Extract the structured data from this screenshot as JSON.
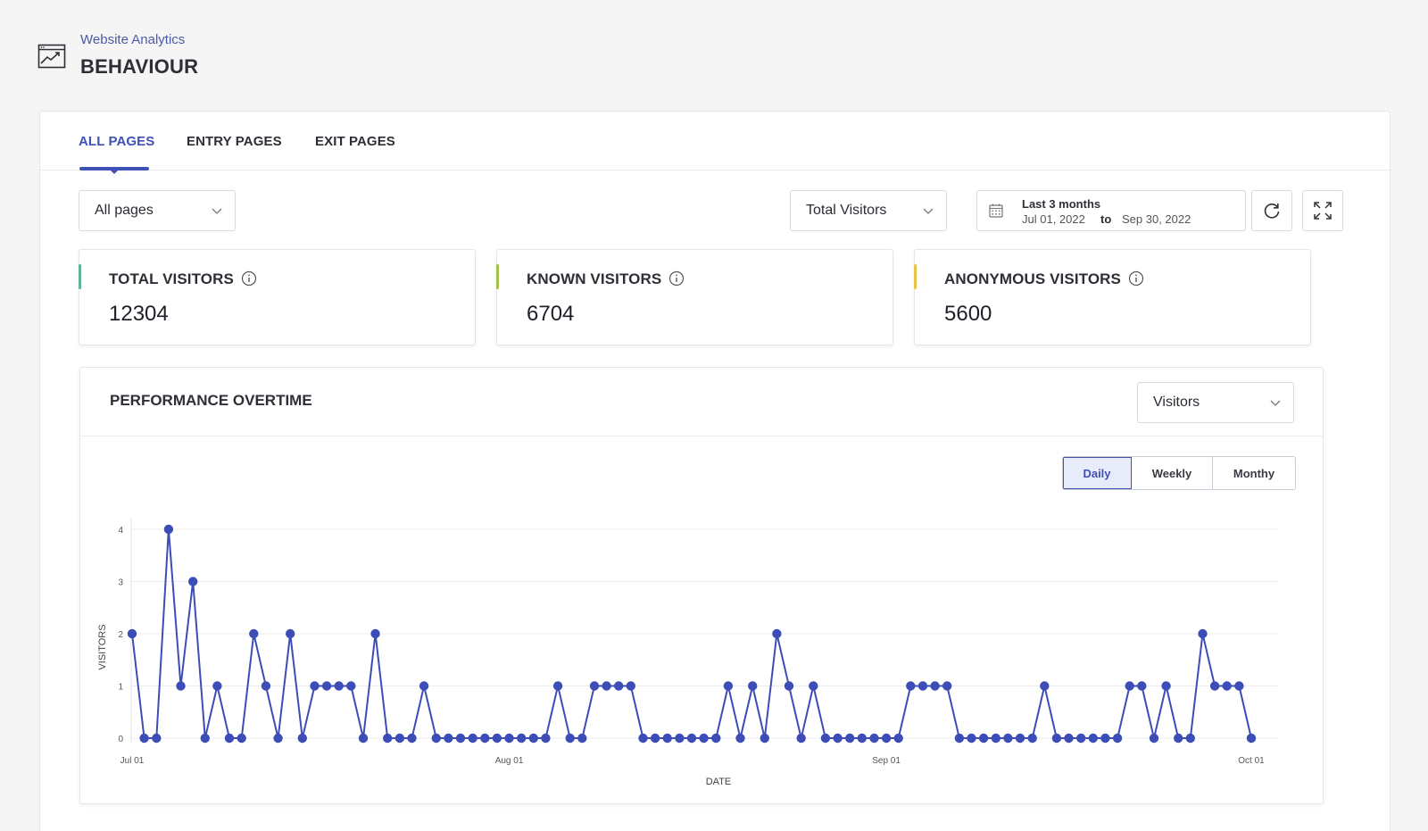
{
  "header": {
    "breadcrumb": "Website Analytics",
    "title": "BEHAVIOUR"
  },
  "tabs": [
    {
      "label": "ALL PAGES",
      "active": true
    },
    {
      "label": "ENTRY PAGES",
      "active": false
    },
    {
      "label": "EXIT PAGES",
      "active": false
    }
  ],
  "filters": {
    "pages_select": "All pages",
    "metric_select": "Total Visitors",
    "date_range": {
      "label": "Last 3 months",
      "from": "Jul 01, 2022",
      "to_word": "to",
      "to": "Sep 30, 2022"
    }
  },
  "stats": [
    {
      "label": "TOTAL VISITORS",
      "value": "12304",
      "color": "#5fb49c"
    },
    {
      "label": "KNOWN VISITORS",
      "value": "6704",
      "color": "#a4c14a"
    },
    {
      "label": "ANONYMOUS VISITORS",
      "value": "5600",
      "color": "#e8c547"
    }
  ],
  "performance": {
    "title": "PERFORMANCE OVERTIME",
    "metric_select": "Visitors",
    "granularity": [
      {
        "label": "Daily",
        "active": true
      },
      {
        "label": "Weekly",
        "active": false
      },
      {
        "label": "Monthy",
        "active": false
      }
    ]
  },
  "colors": {
    "accent": "#3f51b5",
    "series": "#3d4db7"
  },
  "chart_data": {
    "type": "line",
    "xlabel": "DATE",
    "ylabel": "VISITORS",
    "ylim": [
      0,
      4
    ],
    "yticks": [
      0,
      1,
      2,
      3,
      4
    ],
    "xticks": [
      {
        "label": "Jul 01",
        "date": "2022-07-01"
      },
      {
        "label": "Aug 01",
        "date": "2022-08-01"
      },
      {
        "label": "Sep 01",
        "date": "2022-09-01"
      },
      {
        "label": "Oct 01",
        "date": "2022-10-01"
      }
    ],
    "x_start": "2022-07-01",
    "x_end": "2022-10-01",
    "series": [
      {
        "values": [
          2,
          0,
          0,
          4,
          1,
          3,
          0,
          1,
          0,
          0,
          2,
          1,
          0,
          2,
          0,
          1,
          1,
          1,
          1,
          0,
          2,
          0,
          0,
          0,
          1,
          0,
          0,
          0,
          0,
          0,
          0,
          0,
          0,
          0,
          0,
          1,
          0,
          0,
          1,
          1,
          1,
          1,
          0,
          0,
          0,
          0,
          0,
          0,
          0,
          1,
          0,
          1,
          0,
          2,
          1,
          0,
          1,
          0,
          0,
          0,
          0,
          0,
          0,
          0,
          1,
          1,
          1,
          1,
          0,
          0,
          0,
          0,
          0,
          0,
          0,
          1,
          0,
          0,
          0,
          0,
          0,
          0,
          1,
          1,
          0,
          1,
          0,
          0,
          2,
          1,
          1,
          1,
          0
        ]
      }
    ]
  }
}
